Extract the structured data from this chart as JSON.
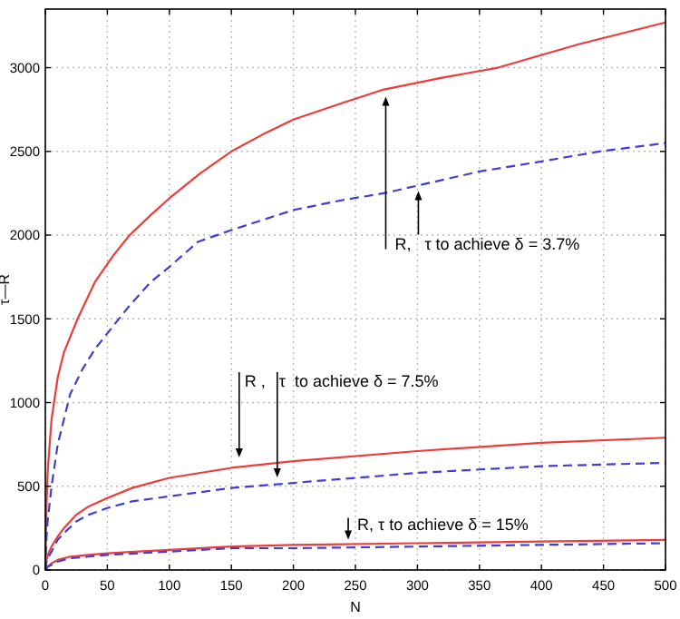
{
  "chart_data": {
    "type": "line",
    "xlabel": "N",
    "ylabel": "τ—R",
    "xlim": [
      0,
      500
    ],
    "ylim": [
      0,
      3350
    ],
    "xticks": [
      0,
      50,
      100,
      150,
      200,
      250,
      300,
      350,
      400,
      450,
      500
    ],
    "yticks": [
      0,
      500,
      1000,
      1500,
      2000,
      2500,
      3000
    ],
    "grid": true,
    "marker": "none",
    "series": [
      {
        "color": "#ee3b3b",
        "line_style": "solid",
        "x": [
          0,
          1,
          2,
          5,
          10,
          15,
          26,
          40,
          55,
          68,
          85,
          100,
          125,
          150,
          175,
          200,
          240,
          273,
          320,
          365,
          430,
          500
        ],
        "values": [
          0,
          400,
          600,
          900,
          1150,
          1300,
          1500,
          1720,
          1880,
          2000,
          2120,
          2220,
          2370,
          2500,
          2600,
          2690,
          2790,
          2870,
          2940,
          3000,
          3140,
          3270
        ]
      },
      {
        "color": "#4040d0",
        "line_style": "dashed",
        "x": [
          0,
          1,
          2,
          5,
          10,
          20,
          30,
          40,
          55,
          68,
          85,
          100,
          123,
          150,
          200,
          240,
          273,
          350,
          400,
          447,
          500
        ],
        "values": [
          0,
          200,
          300,
          500,
          750,
          1050,
          1200,
          1320,
          1460,
          1580,
          1720,
          1810,
          1960,
          2030,
          2150,
          2210,
          2250,
          2380,
          2440,
          2500,
          2550
        ]
      },
      {
        "color": "#ee3b3b",
        "line_style": "solid",
        "x": [
          0,
          1,
          2,
          5,
          10,
          15,
          25,
          35,
          50,
          70,
          100,
          150,
          200,
          300,
          400,
          500
        ],
        "values": [
          0,
          60,
          90,
          140,
          200,
          250,
          330,
          380,
          430,
          490,
          550,
          610,
          650,
          710,
          760,
          790
        ]
      },
      {
        "color": "#4040d0",
        "line_style": "dashed",
        "x": [
          0,
          1,
          2,
          5,
          10,
          15,
          25,
          35,
          50,
          70,
          100,
          150,
          200,
          300,
          400,
          500
        ],
        "values": [
          0,
          50,
          70,
          110,
          180,
          220,
          290,
          330,
          370,
          410,
          440,
          490,
          520,
          580,
          620,
          640
        ]
      },
      {
        "color": "#ee3b3b",
        "line_style": "solid",
        "x": [
          0,
          2,
          5,
          10,
          20,
          35,
          50,
          75,
          100,
          150,
          200,
          300,
          400,
          500
        ],
        "values": [
          0,
          20,
          40,
          60,
          80,
          90,
          100,
          110,
          120,
          140,
          150,
          160,
          170,
          180
        ]
      },
      {
        "color": "#4040d0",
        "line_style": "dashed",
        "x": [
          0,
          2,
          5,
          10,
          20,
          35,
          50,
          75,
          100,
          150,
          200,
          300,
          400,
          500
        ],
        "values": [
          0,
          20,
          30,
          50,
          70,
          80,
          90,
          100,
          110,
          130,
          130,
          140,
          150,
          160
        ]
      }
    ],
    "annotations": [
      {
        "text": "R,   τ to achieve δ = 3.7%",
        "x": 273,
        "y": 2870
      },
      {
        "text": "R ,   τ  to achieve δ = 7.5%",
        "x": 187,
        "y": 510
      },
      {
        "text": "R, τ to achieve δ = 15%",
        "x": 242,
        "y": 160
      }
    ]
  }
}
